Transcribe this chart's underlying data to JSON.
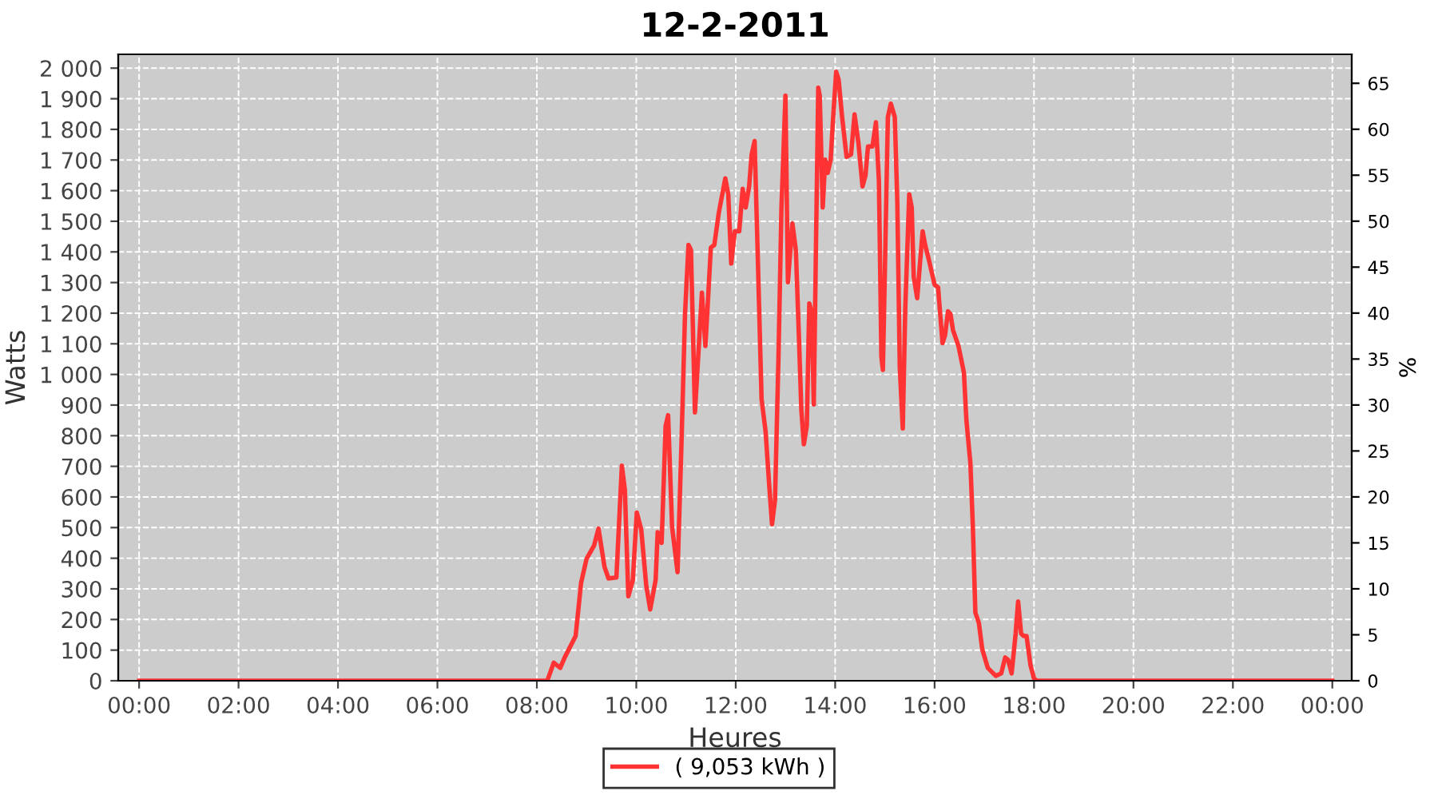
{
  "chart_data": {
    "type": "line",
    "title": "12-2-2011",
    "xlabel": "Heures",
    "ylabel": "Watts",
    "y2label": "%",
    "xlim": [
      -0.42,
      24.39
    ],
    "xticks": [
      {
        "value": 0,
        "label": "00:00"
      },
      {
        "value": 2,
        "label": "02:00"
      },
      {
        "value": 4,
        "label": "04:00"
      },
      {
        "value": 6,
        "label": "06:00"
      },
      {
        "value": 8,
        "label": "08:00"
      },
      {
        "value": 10,
        "label": "10:00"
      },
      {
        "value": 12,
        "label": "12:00"
      },
      {
        "value": 14,
        "label": "14:00"
      },
      {
        "value": 16,
        "label": "16:00"
      },
      {
        "value": 18,
        "label": "18:00"
      },
      {
        "value": 20,
        "label": "20:00"
      },
      {
        "value": 22,
        "label": "22:00"
      },
      {
        "value": 24,
        "label": "00:00"
      }
    ],
    "ylim": [
      0,
      2045
    ],
    "yticks": [
      0,
      100,
      200,
      300,
      400,
      500,
      600,
      700,
      800,
      900,
      {
        "value": 1000,
        "label": "1 000"
      },
      {
        "value": 1100,
        "label": "1 100"
      },
      {
        "value": 1200,
        "label": "1 200"
      },
      {
        "value": 1300,
        "label": "1 300"
      },
      {
        "value": 1400,
        "label": "1 400"
      },
      {
        "value": 1500,
        "label": "1 500"
      },
      {
        "value": 1600,
        "label": "1 600"
      },
      {
        "value": 1700,
        "label": "1 700"
      },
      {
        "value": 1800,
        "label": "1 800"
      },
      {
        "value": 1900,
        "label": "1 900"
      },
      {
        "value": 2000,
        "label": "2 000"
      }
    ],
    "y2lim": [
      0,
      68.15
    ],
    "y2ticks": [
      0,
      5,
      10,
      15,
      20,
      25,
      30,
      35,
      40,
      45,
      50,
      55,
      60,
      65
    ],
    "grid": true,
    "legend": "bottom",
    "marker": "none",
    "line_style": "solid",
    "series": [
      {
        "name": "( 9,053 kWh )",
        "color": "#ff3333",
        "x": [
          0,
          8.21,
          8.34,
          8.47,
          8.56,
          8.78,
          8.89,
          9.0,
          9.15,
          9.24,
          9.36,
          9.44,
          9.6,
          9.71,
          9.77,
          9.84,
          9.93,
          10.01,
          10.1,
          10.2,
          10.28,
          10.39,
          10.43,
          10.51,
          10.59,
          10.64,
          10.72,
          10.83,
          10.91,
          10.98,
          11.05,
          11.1,
          11.18,
          11.23,
          11.32,
          11.39,
          11.45,
          11.5,
          11.57,
          11.66,
          11.79,
          11.85,
          11.91,
          11.98,
          12.07,
          12.14,
          12.2,
          12.27,
          12.32,
          12.38,
          12.44,
          12.52,
          12.6,
          12.68,
          12.73,
          12.79,
          12.86,
          12.92,
          13.0,
          13.05,
          13.14,
          13.21,
          13.27,
          13.32,
          13.37,
          13.43,
          13.48,
          13.53,
          13.57,
          13.61,
          13.66,
          13.69,
          13.75,
          13.8,
          13.85,
          13.91,
          13.96,
          14.02,
          14.07,
          14.14,
          14.23,
          14.32,
          14.39,
          14.47,
          14.55,
          14.61,
          14.66,
          14.75,
          14.82,
          14.88,
          14.93,
          14.96,
          15.0,
          15.06,
          15.12,
          15.2,
          15.25,
          15.3,
          15.36,
          15.41,
          15.49,
          15.54,
          15.58,
          15.65,
          15.71,
          15.76,
          15.81,
          15.89,
          16.0,
          16.07,
          16.16,
          16.21,
          16.27,
          16.32,
          16.37,
          16.48,
          16.59,
          16.64,
          16.72,
          16.77,
          16.82,
          16.89,
          16.96,
          17.07,
          17.23,
          17.34,
          17.42,
          17.48,
          17.55,
          17.63,
          17.68,
          17.74,
          17.79,
          17.85,
          17.93,
          18.0,
          18.06,
          24.0
        ],
        "values": [
          0,
          0,
          59,
          42,
          76,
          146,
          320,
          398,
          441,
          497,
          372,
          334,
          337,
          702,
          624,
          276,
          328,
          549,
          493,
          311,
          233,
          330,
          485,
          450,
          832,
          867,
          502,
          354,
          780,
          1197,
          1423,
          1406,
          876,
          1015,
          1267,
          1093,
          1267,
          1414,
          1423,
          1528,
          1640,
          1588,
          1362,
          1467,
          1467,
          1606,
          1545,
          1614,
          1718,
          1762,
          1405,
          919,
          815,
          624,
          511,
          589,
          1058,
          1545,
          1910,
          1301,
          1493,
          1405,
          1128,
          884,
          772,
          832,
          1232,
          1200,
          902,
          1371,
          1936,
          1910,
          1545,
          1701,
          1658,
          1701,
          1840,
          1988,
          1962,
          1840,
          1710,
          1718,
          1849,
          1753,
          1614,
          1649,
          1744,
          1744,
          1823,
          1632,
          1058,
          1015,
          1336,
          1840,
          1884,
          1840,
          1562,
          1023,
          824,
          1215,
          1588,
          1545,
          1319,
          1249,
          1371,
          1467,
          1423,
          1371,
          1293,
          1284,
          1102,
          1128,
          1206,
          1197,
          1145,
          1093,
          1006,
          850,
          711,
          502,
          223,
          189,
          102,
          42,
          16,
          24,
          76,
          68,
          24,
          154,
          259,
          154,
          146,
          146,
          50,
          7,
          0,
          0
        ]
      }
    ]
  }
}
